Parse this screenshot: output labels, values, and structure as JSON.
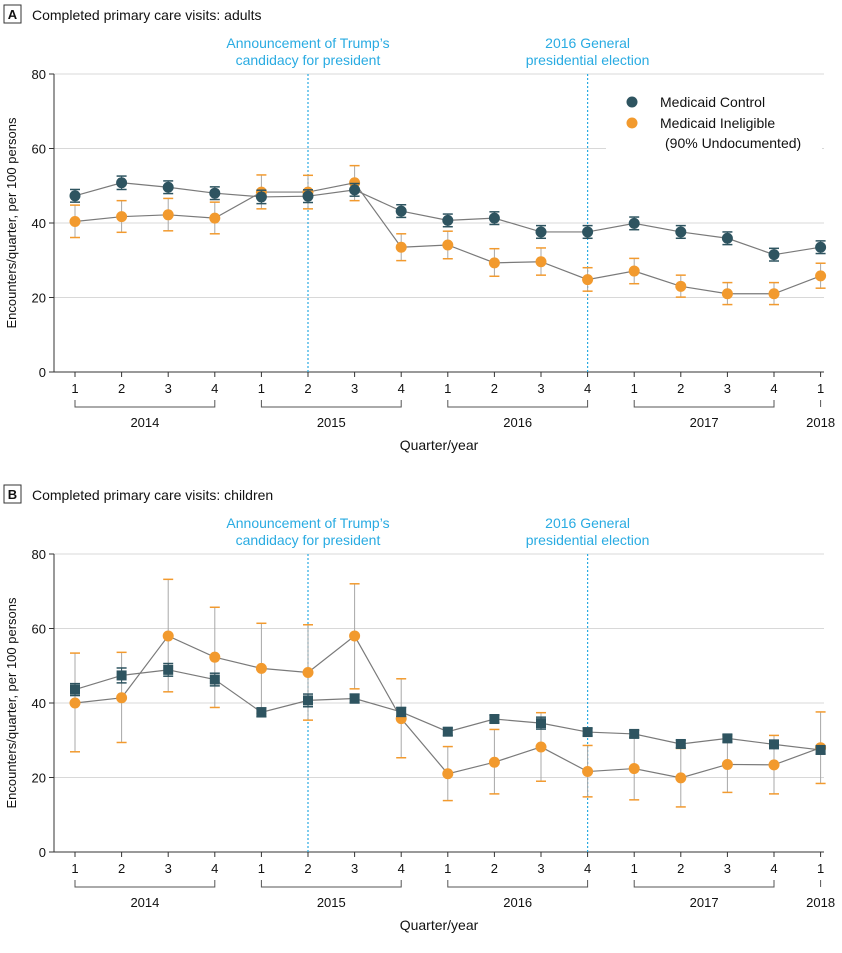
{
  "panels": [
    {
      "letter": "A",
      "title": "Completed primary care visits: adults",
      "ylabel": "Encounters/quarter, per 100 persons",
      "xlabel": "Quarter/year",
      "vlines": [
        {
          "at_index": 5,
          "label_lines": [
            "Announcement of Trump’s",
            "candidacy for president"
          ]
        },
        {
          "at_index": 11,
          "label_lines": [
            "2016 General",
            "presidential election"
          ]
        }
      ],
      "legend": {
        "control": "Medicaid Control",
        "ineligible": "Medicaid Ineligible",
        "ineligible_note": "(90% Undocumented)"
      },
      "chart_data": {
        "type": "line",
        "ylim": [
          0,
          80
        ],
        "yticks": [
          0,
          20,
          40,
          60,
          80
        ],
        "grid": true,
        "legend_position": "top-right",
        "x_quarters": [
          "1",
          "2",
          "3",
          "4",
          "1",
          "2",
          "3",
          "4",
          "1",
          "2",
          "3",
          "4",
          "1",
          "2",
          "3",
          "4",
          "1"
        ],
        "years": [
          {
            "label": "2014",
            "from": 0,
            "to": 3
          },
          {
            "label": "2015",
            "from": 4,
            "to": 7
          },
          {
            "label": "2016",
            "from": 8,
            "to": 11
          },
          {
            "label": "2017",
            "from": 12,
            "to": 15
          },
          {
            "label": "2018",
            "from": 16,
            "to": 16
          }
        ],
        "series": [
          {
            "name": "Medicaid Control",
            "color": "#2e5460",
            "marker": "circle",
            "values": [
              47.3,
              50.8,
              49.6,
              48.0,
              47.0,
              47.2,
              48.9,
              43.2,
              40.7,
              41.3,
              37.6,
              37.6,
              39.9,
              37.6,
              35.9,
              31.5,
              33.5
            ],
            "ci_low": [
              45.6,
              49.0,
              47.9,
              46.3,
              45.2,
              45.5,
              47.2,
              41.5,
              39.0,
              39.6,
              35.9,
              35.9,
              38.2,
              35.9,
              34.2,
              29.8,
              31.8
            ],
            "ci_high": [
              49.0,
              52.6,
              51.3,
              49.7,
              48.8,
              48.9,
              50.6,
              44.9,
              42.4,
              43.0,
              39.3,
              39.3,
              41.6,
              39.3,
              37.6,
              33.2,
              35.2
            ]
          },
          {
            "name": "Medicaid Ineligible",
            "color": "#f29a2e",
            "marker": "circle",
            "values": [
              40.4,
              41.7,
              42.2,
              41.3,
              48.3,
              48.3,
              50.8,
              33.5,
              34.1,
              29.3,
              29.6,
              24.8,
              27.1,
              23.0,
              21.0,
              21.0,
              25.8
            ],
            "ci_low": [
              36.1,
              37.5,
              37.9,
              37.1,
              43.8,
              43.8,
              46.0,
              29.9,
              30.4,
              25.7,
              26.0,
              21.7,
              23.7,
              20.1,
              18.1,
              18.1,
              22.5
            ],
            "ci_high": [
              44.8,
              46.0,
              46.6,
              45.6,
              52.9,
              52.8,
              55.4,
              37.1,
              37.8,
              33.1,
              33.3,
              28.0,
              30.5,
              26.0,
              24.0,
              24.0,
              29.2
            ]
          }
        ]
      }
    },
    {
      "letter": "B",
      "title": "Completed primary care visits: children",
      "ylabel": "Encounters/quarter, per 100 persons",
      "xlabel": "Quarter/year",
      "vlines": [
        {
          "at_index": 5,
          "label_lines": [
            "Announcement of Trump’s",
            "candidacy for president"
          ]
        },
        {
          "at_index": 11,
          "label_lines": [
            "2016 General",
            "presidential election"
          ]
        }
      ],
      "chart_data": {
        "type": "line",
        "ylim": [
          0,
          80
        ],
        "yticks": [
          0,
          20,
          40,
          60,
          80
        ],
        "grid": true,
        "x_quarters": [
          "1",
          "2",
          "3",
          "4",
          "1",
          "2",
          "3",
          "4",
          "1",
          "2",
          "3",
          "4",
          "1",
          "2",
          "3",
          "4",
          "1"
        ],
        "years": [
          {
            "label": "2014",
            "from": 0,
            "to": 3
          },
          {
            "label": "2015",
            "from": 4,
            "to": 7
          },
          {
            "label": "2016",
            "from": 8,
            "to": 11
          },
          {
            "label": "2017",
            "from": 12,
            "to": 15
          },
          {
            "label": "2018",
            "from": 16,
            "to": 16
          }
        ],
        "series": [
          {
            "name": "Medicaid Control",
            "color": "#2e5460",
            "marker": "square",
            "values": [
              43.6,
              47.4,
              48.9,
              46.3,
              37.5,
              40.7,
              41.2,
              37.6,
              32.3,
              35.7,
              34.6,
              32.2,
              31.7,
              29.0,
              30.5,
              28.9,
              27.4
            ],
            "ci_low": [
              42.0,
              45.4,
              47.2,
              44.6,
              36.3,
              39.0,
              40.0,
              36.4,
              31.3,
              34.7,
              33.0,
              31.2,
              30.7,
              28.0,
              29.5,
              27.8,
              26.3
            ],
            "ci_high": [
              45.2,
              49.4,
              50.6,
              48.0,
              38.7,
              42.4,
              42.4,
              38.8,
              33.3,
              36.7,
              36.2,
              33.2,
              32.7,
              30.0,
              31.5,
              30.0,
              28.5
            ]
          },
          {
            "name": "Medicaid Ineligible",
            "color": "#f29a2e",
            "marker": "circle",
            "values": [
              40.0,
              41.4,
              58.0,
              52.3,
              49.3,
              48.2,
              58.0,
              35.8,
              21.0,
              24.1,
              28.2,
              21.6,
              22.4,
              19.9,
              23.5,
              23.4,
              28.0
            ],
            "ci_low": [
              26.9,
              29.4,
              43.0,
              38.8,
              37.2,
              35.4,
              43.8,
              25.3,
              13.8,
              15.6,
              19.0,
              14.8,
              14.0,
              12.1,
              16.0,
              15.6,
              18.4
            ],
            "ci_high": [
              53.4,
              53.6,
              73.2,
              65.7,
              61.4,
              61.0,
              72.0,
              46.5,
              28.3,
              32.9,
              37.4,
              28.6,
              30.9,
              27.8,
              31.1,
              31.3,
              37.6
            ]
          }
        ]
      }
    }
  ]
}
